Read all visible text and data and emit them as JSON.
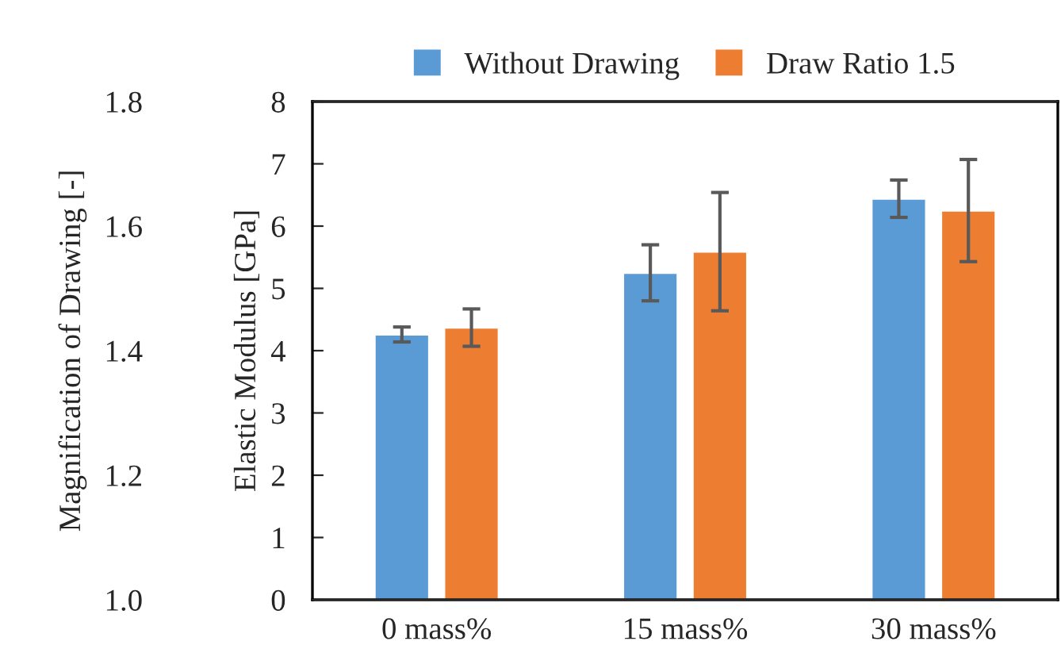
{
  "chart_data": {
    "type": "bar",
    "categories": [
      "0 mass%",
      "15 mass%",
      "30 mass%"
    ],
    "series": [
      {
        "name": "Without Drawing",
        "color": "#5b9bd5",
        "values": [
          4.26,
          5.25,
          6.44
        ],
        "errors": [
          0.12,
          0.45,
          0.3
        ]
      },
      {
        "name": "Draw Ratio 1.5",
        "color": "#ed7d31",
        "values": [
          4.37,
          5.59,
          6.25
        ],
        "errors": [
          0.3,
          0.95,
          0.82
        ]
      }
    ],
    "ylabel": "Elastic Modulus [GPa]",
    "ylim": [
      0,
      8
    ],
    "yticks": [
      0,
      1,
      2,
      3,
      4,
      5,
      6,
      7,
      8
    ],
    "y2label": "Magnification of Drawing [-]",
    "y2lim": [
      1.0,
      1.8
    ],
    "y2ticks": [
      {
        "value": 1.0,
        "label": "1.0"
      },
      {
        "value": 1.2,
        "label": "1.2"
      },
      {
        "value": 1.4,
        "label": "1.4"
      },
      {
        "value": 1.6,
        "label": "1.6"
      },
      {
        "value": 1.8,
        "label": "1.8"
      }
    ],
    "grid": false,
    "legend": "top"
  }
}
